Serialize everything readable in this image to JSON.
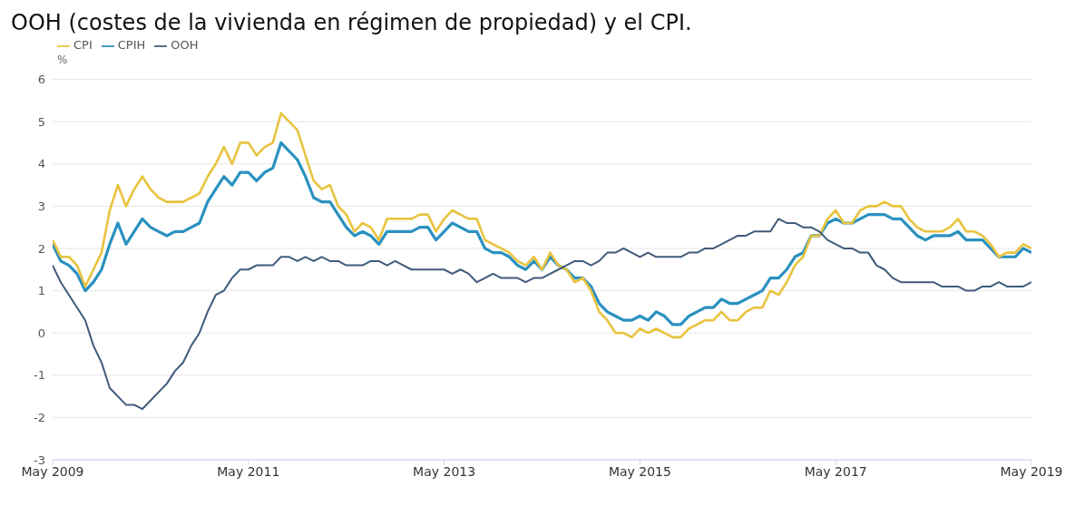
{
  "chart_data": {
    "type": "line",
    "title": "OOH (costes de la vivienda en régimen de propiedad) y el CPI.",
    "ylabel": "%",
    "x": [
      "2009-05",
      "2009-06",
      "2009-07",
      "2009-08",
      "2009-09",
      "2009-10",
      "2009-11",
      "2009-12",
      "2010-01",
      "2010-02",
      "2010-03",
      "2010-04",
      "2010-05",
      "2010-06",
      "2010-07",
      "2010-08",
      "2010-09",
      "2010-10",
      "2010-11",
      "2010-12",
      "2011-01",
      "2011-02",
      "2011-03",
      "2011-04",
      "2011-05",
      "2011-06",
      "2011-07",
      "2011-08",
      "2011-09",
      "2011-10",
      "2011-11",
      "2011-12",
      "2012-01",
      "2012-02",
      "2012-03",
      "2012-04",
      "2012-05",
      "2012-06",
      "2012-07",
      "2012-08",
      "2012-09",
      "2012-10",
      "2012-11",
      "2012-12",
      "2013-01",
      "2013-02",
      "2013-03",
      "2013-04",
      "2013-05",
      "2013-06",
      "2013-07",
      "2013-08",
      "2013-09",
      "2013-10",
      "2013-11",
      "2013-12",
      "2014-01",
      "2014-02",
      "2014-03",
      "2014-04",
      "2014-05",
      "2014-06",
      "2014-07",
      "2014-08",
      "2014-09",
      "2014-10",
      "2014-11",
      "2014-12",
      "2015-01",
      "2015-02",
      "2015-03",
      "2015-04",
      "2015-05",
      "2015-06",
      "2015-07",
      "2015-08",
      "2015-09",
      "2015-10",
      "2015-11",
      "2015-12",
      "2016-01",
      "2016-02",
      "2016-03",
      "2016-04",
      "2016-05",
      "2016-06",
      "2016-07",
      "2016-08",
      "2016-09",
      "2016-10",
      "2016-11",
      "2016-12",
      "2017-01",
      "2017-02",
      "2017-03",
      "2017-04",
      "2017-05",
      "2017-06",
      "2017-07",
      "2017-08",
      "2017-09",
      "2017-10",
      "2017-11",
      "2017-12",
      "2018-01",
      "2018-02",
      "2018-03",
      "2018-04",
      "2018-05",
      "2018-06",
      "2018-07",
      "2018-08",
      "2018-09",
      "2018-10",
      "2018-11",
      "2018-12",
      "2019-01",
      "2019-02",
      "2019-03",
      "2019-04",
      "2019-05"
    ],
    "series": [
      {
        "name": "CPIH",
        "color": "#2a91c0",
        "values": [
          2.1,
          1.7,
          1.6,
          1.4,
          1.0,
          1.2,
          1.5,
          2.1,
          2.6,
          2.1,
          2.4,
          2.7,
          2.5,
          2.4,
          2.3,
          2.4,
          2.4,
          2.5,
          2.6,
          3.1,
          3.4,
          3.7,
          3.5,
          3.8,
          3.8,
          3.6,
          3.8,
          3.9,
          4.5,
          4.3,
          4.1,
          3.7,
          3.2,
          3.1,
          3.1,
          2.8,
          2.5,
          2.3,
          2.4,
          2.3,
          2.1,
          2.4,
          2.4,
          2.4,
          2.4,
          2.5,
          2.5,
          2.2,
          2.4,
          2.6,
          2.5,
          2.4,
          2.4,
          2.0,
          1.9,
          1.9,
          1.8,
          1.6,
          1.5,
          1.7,
          1.5,
          1.8,
          1.6,
          1.5,
          1.3,
          1.3,
          1.1,
          0.7,
          0.5,
          0.4,
          0.3,
          0.3,
          0.4,
          0.3,
          0.5,
          0.4,
          0.2,
          0.2,
          0.4,
          0.5,
          0.6,
          0.6,
          0.8,
          0.7,
          0.7,
          0.8,
          0.9,
          1.0,
          1.3,
          1.3,
          1.5,
          1.8,
          1.9,
          2.3,
          2.3,
          2.6,
          2.7,
          2.6,
          2.6,
          2.7,
          2.8,
          2.8,
          2.8,
          2.7,
          2.7,
          2.5,
          2.3,
          2.2,
          2.3,
          2.3,
          2.3,
          2.4,
          2.2,
          2.2,
          2.2,
          2.0,
          1.8,
          1.8,
          1.8,
          2.0,
          1.9
        ]
      },
      {
        "name": "CPI",
        "color": "#e8c33e",
        "values": [
          2.2,
          1.8,
          1.8,
          1.6,
          1.1,
          1.5,
          1.9,
          2.9,
          3.5,
          3.0,
          3.4,
          3.7,
          3.4,
          3.2,
          3.1,
          3.1,
          3.1,
          3.2,
          3.3,
          3.7,
          4.0,
          4.4,
          4.0,
          4.5,
          4.5,
          4.2,
          4.4,
          4.5,
          5.2,
          5.0,
          4.8,
          4.2,
          3.6,
          3.4,
          3.5,
          3.0,
          2.8,
          2.4,
          2.6,
          2.5,
          2.2,
          2.7,
          2.7,
          2.7,
          2.7,
          2.8,
          2.8,
          2.4,
          2.7,
          2.9,
          2.8,
          2.7,
          2.7,
          2.2,
          2.1,
          2.0,
          1.9,
          1.7,
          1.6,
          1.8,
          1.5,
          1.9,
          1.6,
          1.5,
          1.2,
          1.3,
          1.0,
          0.5,
          0.3,
          0.0,
          0.0,
          -0.1,
          0.1,
          0.0,
          0.1,
          0.0,
          -0.1,
          -0.1,
          0.1,
          0.2,
          0.3,
          0.3,
          0.5,
          0.3,
          0.3,
          0.5,
          0.6,
          0.6,
          1.0,
          0.9,
          1.2,
          1.6,
          1.8,
          2.3,
          2.3,
          2.7,
          2.9,
          2.6,
          2.6,
          2.9,
          3.0,
          3.0,
          3.1,
          3.0,
          3.0,
          2.7,
          2.5,
          2.4,
          2.4,
          2.4,
          2.5,
          2.7,
          2.4,
          2.4,
          2.3,
          2.1,
          1.8,
          1.9,
          1.9,
          2.1,
          2.0
        ]
      },
      {
        "name": "OOH",
        "color": "#3f5a7a",
        "values": [
          1.6,
          1.2,
          0.9,
          0.6,
          0.3,
          -0.3,
          -0.7,
          -1.3,
          -1.5,
          -1.7,
          -1.7,
          -1.8,
          -1.6,
          -1.4,
          -1.2,
          -0.9,
          -0.7,
          -0.3,
          0.0,
          0.5,
          0.9,
          1.0,
          1.3,
          1.5,
          1.5,
          1.6,
          1.6,
          1.6,
          1.8,
          1.8,
          1.7,
          1.8,
          1.7,
          1.8,
          1.7,
          1.7,
          1.6,
          1.6,
          1.6,
          1.7,
          1.7,
          1.6,
          1.7,
          1.6,
          1.5,
          1.5,
          1.5,
          1.5,
          1.5,
          1.4,
          1.5,
          1.4,
          1.2,
          1.3,
          1.4,
          1.3,
          1.3,
          1.3,
          1.2,
          1.3,
          1.3,
          1.4,
          1.5,
          1.6,
          1.7,
          1.7,
          1.6,
          1.7,
          1.9,
          1.9,
          2.0,
          1.9,
          1.8,
          1.9,
          1.8,
          1.8,
          1.8,
          1.8,
          1.9,
          1.9,
          2.0,
          2.0,
          2.1,
          2.2,
          2.3,
          2.3,
          2.4,
          2.4,
          2.4,
          2.7,
          2.6,
          2.6,
          2.5,
          2.5,
          2.4,
          2.2,
          2.1,
          2.0,
          2.0,
          1.9,
          1.9,
          1.6,
          1.5,
          1.3,
          1.2,
          1.2,
          1.2,
          1.2,
          1.2,
          1.1,
          1.1,
          1.1,
          1.0,
          1.0,
          1.1,
          1.1,
          1.2,
          1.1,
          1.1,
          1.1,
          1.2
        ]
      }
    ],
    "xlim": [
      "2009-05",
      "2019-05"
    ],
    "xticks": [
      {
        "value": "2009-05",
        "label": "May 2009"
      },
      {
        "value": "2011-05",
        "label": "May 2011"
      },
      {
        "value": "2013-05",
        "label": "May 2013"
      },
      {
        "value": "2015-05",
        "label": "May 2015"
      },
      {
        "value": "2017-05",
        "label": "May 2017"
      },
      {
        "value": "2019-05",
        "label": "May 2019"
      }
    ],
    "ylim": [
      -3,
      6
    ],
    "yticks": [
      -3,
      -2,
      -1,
      0,
      1,
      2,
      3,
      4,
      5,
      6
    ],
    "grid": "y",
    "legend": "top left",
    "marker": "none",
    "line_style": "solid"
  }
}
